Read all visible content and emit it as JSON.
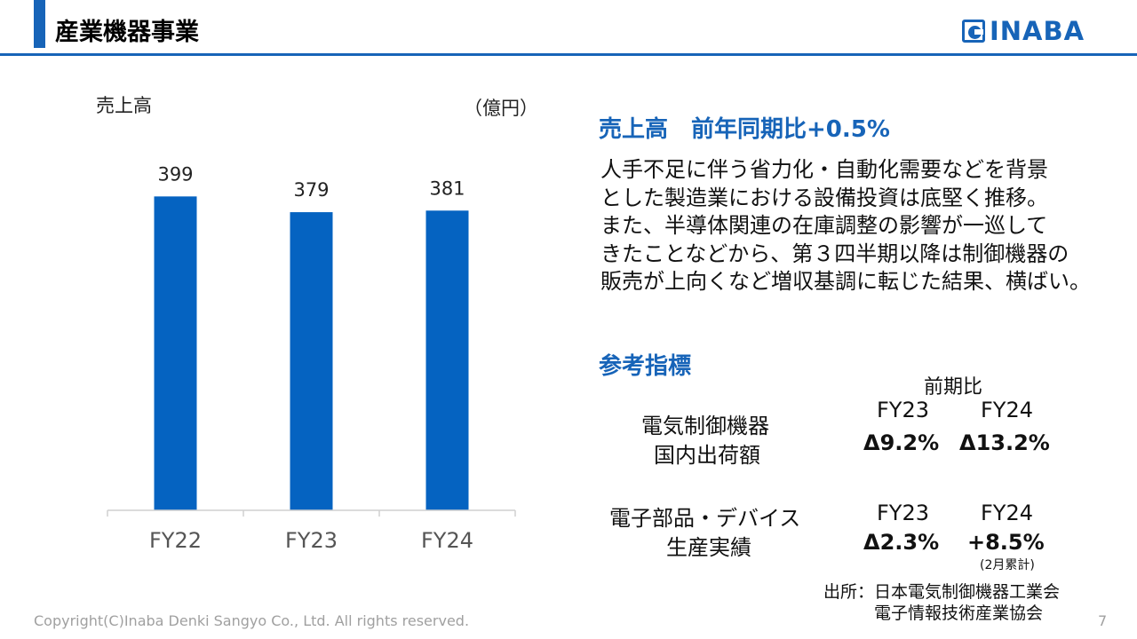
{
  "header": {
    "title": "産業機器事業",
    "logo_text": "INABA",
    "accent_color": "#1764b8"
  },
  "chart_data": {
    "type": "bar",
    "title": "売上高",
    "unit": "（億円）",
    "categories": [
      "FY22",
      "FY23",
      "FY24"
    ],
    "values": [
      399,
      379,
      381
    ],
    "data_labels": [
      "399",
      "379",
      "381"
    ],
    "ylim": [
      0,
      440
    ],
    "grid": false,
    "bar_color": "#0563c1"
  },
  "summary": {
    "heading": "売上高　前年同期比+0.5%",
    "lines": [
      "人手不足に伴う省力化・自動化需要などを背景",
      "とした製造業における設備投資は底堅く推移。",
      "また、半導体関連の在庫調整の影響が一巡して",
      "きたことなどから、第３四半期以降は制御機器の",
      "販売が上向くなど増収基調に転じた結果、横ばい。"
    ]
  },
  "indicators": {
    "heading": "参考指標",
    "column_header": "前期比",
    "rows": [
      {
        "label_lines": [
          "電気制御機器",
          "国内出荷額"
        ],
        "cols": [
          {
            "period": "FY23",
            "value": "Δ9.2%"
          },
          {
            "period": "FY24",
            "value": "Δ13.2%"
          }
        ]
      },
      {
        "label_lines": [
          "電子部品・デバイス",
          "生産実績"
        ],
        "cols": [
          {
            "period": "FY23",
            "value": "Δ2.3%"
          },
          {
            "period": "FY24",
            "value": "+8.5%",
            "note": "(2月累計)"
          }
        ]
      }
    ],
    "source_lines": [
      "出所：日本電気制御機器工業会",
      "　　　電子情報技術産業協会"
    ]
  },
  "footer": {
    "copyright": "Copyright(C)Inaba Denki Sangyo Co., Ltd. All rights reserved.",
    "page": "7"
  }
}
